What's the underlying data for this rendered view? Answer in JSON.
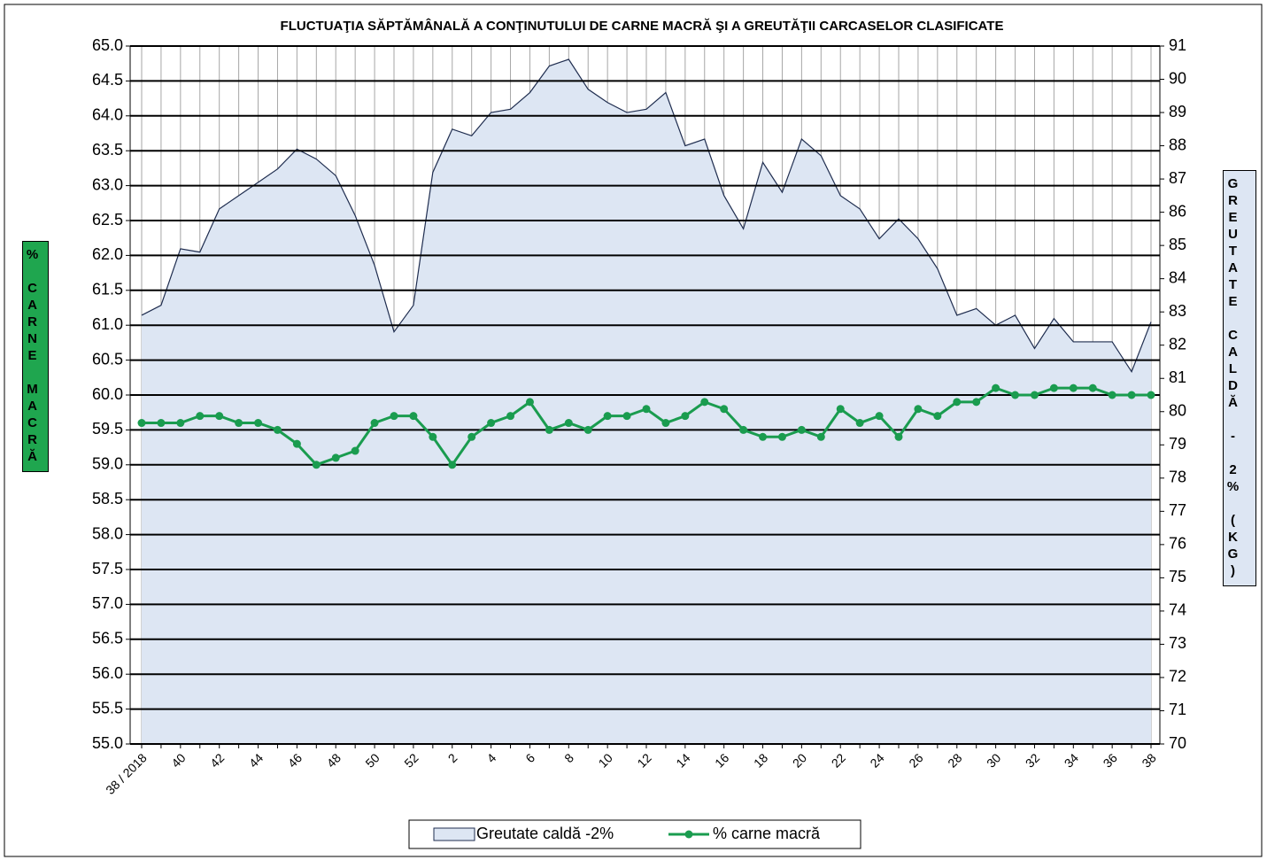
{
  "chart_data": {
    "type": "line-area",
    "title": "FLUCTUAŢIA SĂPTĂMÂNALĂ  A CONŢINUTULUI DE CARNE MACRĂ ŞI A GREUTĂŢII CARCASELOR CLASIFICATE",
    "y_label": "%  CARNE  MACRĂ",
    "y2_label": "GREUTATE  CALDĂ  -  2%  (KG)",
    "categories": [
      "38 / 2018",
      null,
      "40",
      null,
      "42",
      null,
      "44",
      null,
      "46",
      null,
      "48",
      null,
      "50",
      null,
      "52",
      null,
      "2",
      null,
      "4",
      null,
      "6",
      null,
      "8",
      null,
      "10",
      null,
      "12",
      null,
      "14",
      null,
      "16",
      null,
      "18",
      null,
      "20",
      null,
      "22",
      null,
      "24",
      null,
      "26",
      null,
      "28",
      null,
      "30",
      null,
      "32",
      null,
      "34",
      null,
      "36",
      null,
      "38"
    ],
    "series": [
      {
        "name": "Greutate caldă -2%",
        "kind": "area",
        "axis": "y2",
        "color": "#dde6f3",
        "line_color": "#1f2d4f",
        "values": [
          82.9,
          83.2,
          84.9,
          84.8,
          86.1,
          86.5,
          86.9,
          87.3,
          87.9,
          87.6,
          87.1,
          85.9,
          84.4,
          82.4,
          83.2,
          87.2,
          88.5,
          88.3,
          89.0,
          89.1,
          89.6,
          90.4,
          90.6,
          89.7,
          89.3,
          89.0,
          89.1,
          89.6,
          88.0,
          88.2,
          86.5,
          85.5,
          87.5,
          86.6,
          88.2,
          87.7,
          86.5,
          86.1,
          85.2,
          85.8,
          85.2,
          84.3,
          82.9,
          83.1,
          82.6,
          82.9,
          81.9,
          82.8,
          82.1,
          82.1,
          82.1,
          81.2,
          82.7
        ]
      },
      {
        "name": "% carne macră",
        "kind": "line",
        "axis": "y",
        "color": "#1a9c4f",
        "values": [
          59.6,
          59.6,
          59.6,
          59.7,
          59.7,
          59.6,
          59.6,
          59.5,
          59.3,
          59.0,
          59.1,
          59.2,
          59.6,
          59.7,
          59.7,
          59.4,
          59.0,
          59.4,
          59.6,
          59.7,
          59.9,
          59.5,
          59.6,
          59.5,
          59.7,
          59.7,
          59.8,
          59.6,
          59.7,
          59.9,
          59.8,
          59.5,
          59.4,
          59.4,
          59.5,
          59.4,
          59.8,
          59.6,
          59.7,
          59.4,
          59.8,
          59.7,
          59.9,
          59.9,
          60.1,
          60.0,
          60.0,
          60.1,
          60.1,
          60.1,
          60.0,
          60.0,
          60.0
        ]
      }
    ],
    "ylim": [
      55,
      65
    ],
    "yticks": [
      {
        "value": 55,
        "label": "55.0"
      },
      55.5,
      {
        "value": 56,
        "label": "56.0"
      },
      56.5,
      {
        "value": 57,
        "label": "57.0"
      },
      57.5,
      {
        "value": 58,
        "label": "58.0"
      },
      58.5,
      {
        "value": 59,
        "label": "59.0"
      },
      59.5,
      {
        "value": 60,
        "label": "60.0"
      },
      60.5,
      {
        "value": 61,
        "label": "61.0"
      },
      61.5,
      {
        "value": 62,
        "label": "62.0"
      },
      62.5,
      {
        "value": 63,
        "label": "63.0"
      },
      63.5,
      {
        "value": 64,
        "label": "64.0"
      },
      64.5,
      {
        "value": 65,
        "label": "65.0"
      }
    ],
    "y2lim": [
      70,
      91
    ],
    "y2ticks": [
      70,
      71,
      72,
      73,
      74,
      75,
      76,
      77,
      78,
      79,
      80,
      81,
      82,
      83,
      84,
      85,
      86,
      87,
      88,
      89,
      90,
      91
    ],
    "grid": true,
    "legend": "bottom",
    "y_label_color": "#1fa64f",
    "y2_label_color": "#dde6f3"
  }
}
